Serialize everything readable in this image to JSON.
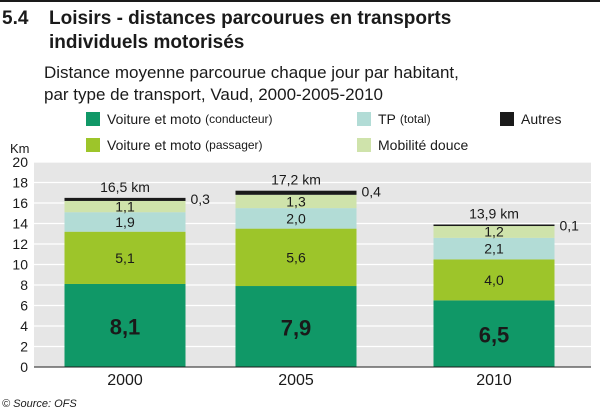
{
  "figure": {
    "number": "5.4",
    "title_line1": "Loisirs - distances parcourues en transports",
    "title_line2": "individuels motorisés",
    "subtitle_line1": "Distance moyenne parcourue chaque jour par habitant,",
    "subtitle_line2": "par type de transport, Vaud, 2000-2005-2010",
    "source": "© Source: OFS"
  },
  "legend": {
    "items": [
      {
        "label": "Voiture et moto",
        "note": "(conducteur)",
        "color": "#109867"
      },
      {
        "label": "TP",
        "note": "(total)",
        "color": "#b2dcd6"
      },
      {
        "label": "Autres",
        "note": "",
        "color": "#1a1a1a"
      },
      {
        "label": "Voiture et moto",
        "note": "(passager)",
        "color": "#9dc52a"
      },
      {
        "label": "Mobilité douce",
        "note": "",
        "color": "#cfe3ab"
      }
    ]
  },
  "chart_data": {
    "type": "bar",
    "stacked": true,
    "categories": [
      "2000",
      "2005",
      "2010"
    ],
    "ylabel": "Km",
    "ylim": [
      0,
      20
    ],
    "yticks": [
      "0",
      "2",
      "4",
      "6",
      "8",
      "10",
      "12",
      "14",
      "16",
      "18",
      "20"
    ],
    "grid": true,
    "series": [
      {
        "name": "Voiture et moto (conducteur)",
        "color": "#109867",
        "values": [
          8.1,
          7.9,
          6.5
        ],
        "labels": [
          "8,1",
          "7,9",
          "6,5"
        ]
      },
      {
        "name": "Voiture et moto (passager)",
        "color": "#9dc52a",
        "values": [
          5.1,
          5.6,
          4.0
        ],
        "labels": [
          "5,1",
          "5,6",
          "4,0"
        ]
      },
      {
        "name": "TP (total)",
        "color": "#b2dcd6",
        "values": [
          1.9,
          2.0,
          2.1
        ],
        "labels": [
          "1,9",
          "2,0",
          "2,1"
        ]
      },
      {
        "name": "Mobilité douce",
        "color": "#cfe3ab",
        "values": [
          1.1,
          1.3,
          1.2
        ],
        "labels": [
          "1,1",
          "1,3",
          "1,2"
        ]
      },
      {
        "name": "Autres",
        "color": "#1a1a1a",
        "values": [
          0.3,
          0.4,
          0.1
        ],
        "labels": [
          "0,3",
          "0,4",
          "0,1"
        ]
      }
    ],
    "totals": [
      "16,5 km",
      "17,2 km",
      "13,9 km"
    ]
  }
}
